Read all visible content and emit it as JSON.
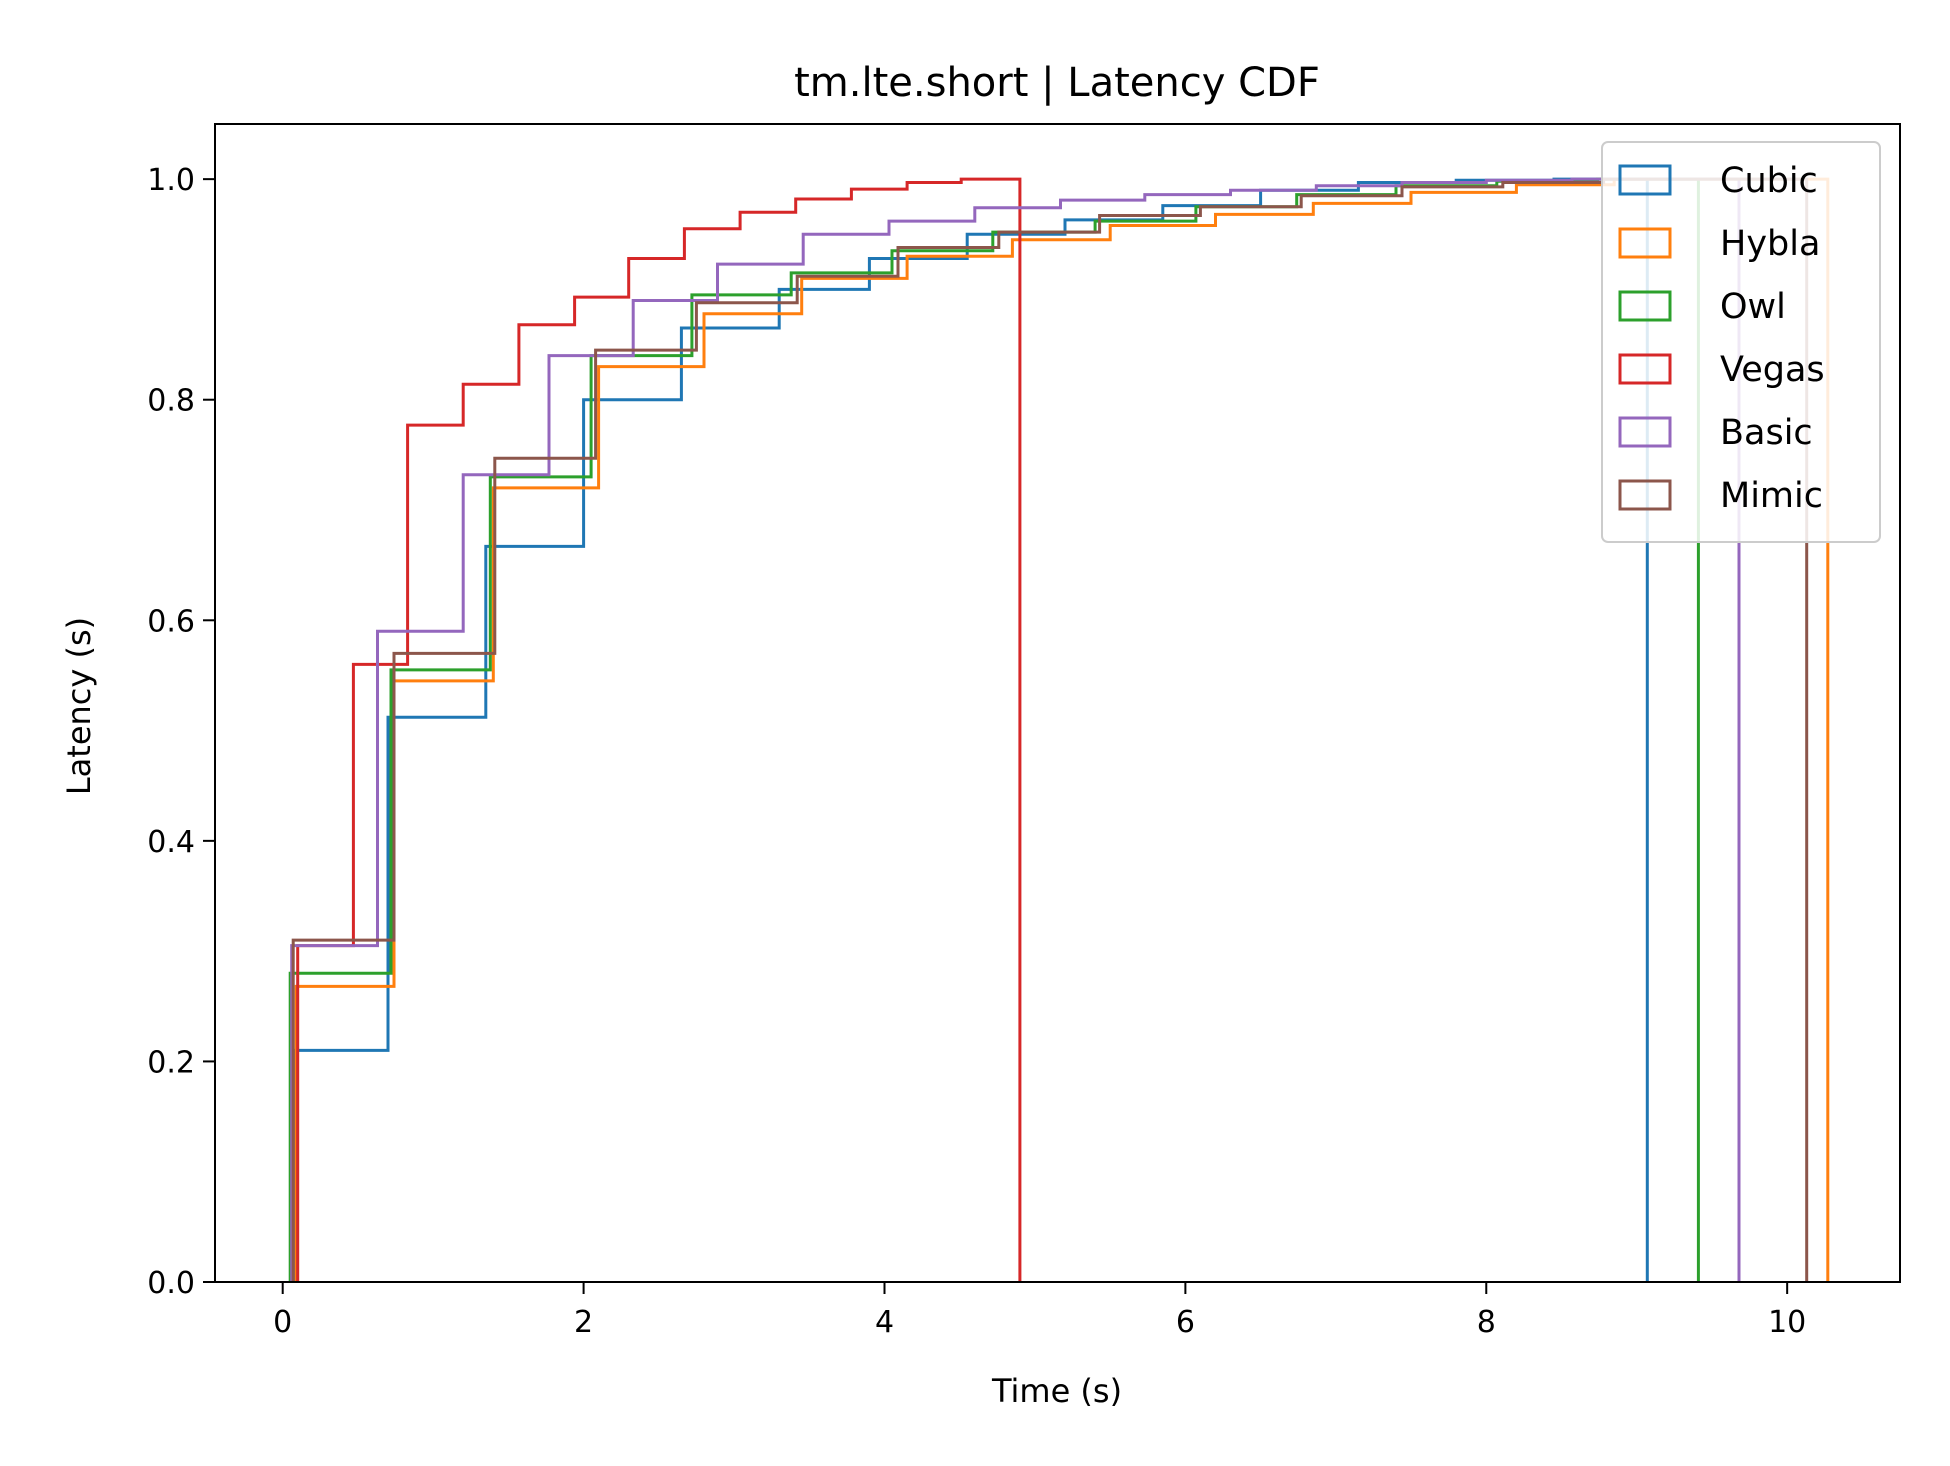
{
  "chart_data": {
    "type": "line",
    "title": "tm.lte.short | Latency CDF",
    "xlabel": "Time (s)",
    "ylabel": "Latency (s)",
    "xlim": [
      -0.45,
      10.75
    ],
    "ylim": [
      0,
      1.05
    ],
    "xticks": [
      0,
      2,
      4,
      6,
      8,
      10
    ],
    "xtick_labels": [
      "0",
      "2",
      "4",
      "6",
      "8",
      "10"
    ],
    "yticks": [
      0,
      0.2,
      0.4,
      0.6,
      0.8,
      1.0
    ],
    "ytick_labels": [
      "0.0",
      "0.2",
      "0.4",
      "0.6",
      "0.8",
      "1.0"
    ],
    "grid": false,
    "legend_position": "top-right",
    "series": [
      {
        "name": "Cubic",
        "color": "#1f77b4",
        "points": [
          [
            0.08,
            0
          ],
          [
            0.08,
            0.21
          ],
          [
            0.7,
            0.21
          ],
          [
            0.7,
            0.512
          ],
          [
            1.35,
            0.512
          ],
          [
            1.35,
            0.667
          ],
          [
            2.0,
            0.667
          ],
          [
            2.0,
            0.8
          ],
          [
            2.65,
            0.8
          ],
          [
            2.65,
            0.865
          ],
          [
            3.3,
            0.865
          ],
          [
            3.3,
            0.9
          ],
          [
            3.9,
            0.9
          ],
          [
            3.9,
            0.928
          ],
          [
            4.55,
            0.928
          ],
          [
            4.55,
            0.95
          ],
          [
            5.2,
            0.95
          ],
          [
            5.2,
            0.963
          ],
          [
            5.85,
            0.963
          ],
          [
            5.85,
            0.976
          ],
          [
            6.5,
            0.976
          ],
          [
            6.5,
            0.99
          ],
          [
            7.15,
            0.99
          ],
          [
            7.15,
            0.997
          ],
          [
            7.8,
            0.997
          ],
          [
            7.8,
            0.999
          ],
          [
            8.45,
            0.999
          ],
          [
            8.45,
            1.0
          ],
          [
            9.07,
            1.0
          ],
          [
            9.07,
            0
          ]
        ]
      },
      {
        "name": "Hybla",
        "color": "#ff7f0e",
        "points": [
          [
            0.09,
            0
          ],
          [
            0.09,
            0.268
          ],
          [
            0.74,
            0.268
          ],
          [
            0.74,
            0.545
          ],
          [
            1.4,
            0.545
          ],
          [
            1.4,
            0.72
          ],
          [
            2.1,
            0.72
          ],
          [
            2.1,
            0.83
          ],
          [
            2.8,
            0.83
          ],
          [
            2.8,
            0.878
          ],
          [
            3.45,
            0.878
          ],
          [
            3.45,
            0.91
          ],
          [
            4.15,
            0.91
          ],
          [
            4.15,
            0.93
          ],
          [
            4.85,
            0.93
          ],
          [
            4.85,
            0.945
          ],
          [
            5.5,
            0.945
          ],
          [
            5.5,
            0.958
          ],
          [
            6.2,
            0.958
          ],
          [
            6.2,
            0.968
          ],
          [
            6.85,
            0.968
          ],
          [
            6.85,
            0.978
          ],
          [
            7.5,
            0.978
          ],
          [
            7.5,
            0.988
          ],
          [
            8.2,
            0.988
          ],
          [
            8.2,
            0.995
          ],
          [
            8.85,
            0.995
          ],
          [
            8.85,
            1.0
          ],
          [
            10.27,
            1.0
          ],
          [
            10.27,
            0
          ]
        ]
      },
      {
        "name": "Owl",
        "color": "#2ca02c",
        "points": [
          [
            0.05,
            0
          ],
          [
            0.05,
            0.28
          ],
          [
            0.72,
            0.28
          ],
          [
            0.72,
            0.555
          ],
          [
            1.38,
            0.555
          ],
          [
            1.38,
            0.73
          ],
          [
            2.05,
            0.73
          ],
          [
            2.05,
            0.84
          ],
          [
            2.72,
            0.84
          ],
          [
            2.72,
            0.895
          ],
          [
            3.38,
            0.895
          ],
          [
            3.38,
            0.915
          ],
          [
            4.05,
            0.915
          ],
          [
            4.05,
            0.935
          ],
          [
            4.72,
            0.935
          ],
          [
            4.72,
            0.952
          ],
          [
            5.4,
            0.952
          ],
          [
            5.4,
            0.962
          ],
          [
            6.07,
            0.962
          ],
          [
            6.07,
            0.975
          ],
          [
            6.74,
            0.975
          ],
          [
            6.74,
            0.986
          ],
          [
            7.4,
            0.986
          ],
          [
            7.4,
            0.994
          ],
          [
            8.07,
            0.994
          ],
          [
            8.07,
            0.998
          ],
          [
            8.74,
            0.998
          ],
          [
            8.74,
            1.0
          ],
          [
            9.41,
            1.0
          ],
          [
            9.41,
            0
          ]
        ]
      },
      {
        "name": "Vegas",
        "color": "#d62728",
        "points": [
          [
            0.1,
            0
          ],
          [
            0.1,
            0.305
          ],
          [
            0.47,
            0.305
          ],
          [
            0.47,
            0.56
          ],
          [
            0.83,
            0.56
          ],
          [
            0.83,
            0.777
          ],
          [
            1.2,
            0.777
          ],
          [
            1.2,
            0.814
          ],
          [
            1.57,
            0.814
          ],
          [
            1.57,
            0.868
          ],
          [
            1.94,
            0.868
          ],
          [
            1.94,
            0.893
          ],
          [
            2.3,
            0.893
          ],
          [
            2.3,
            0.928
          ],
          [
            2.67,
            0.928
          ],
          [
            2.67,
            0.955
          ],
          [
            3.04,
            0.955
          ],
          [
            3.04,
            0.97
          ],
          [
            3.41,
            0.97
          ],
          [
            3.41,
            0.982
          ],
          [
            3.78,
            0.982
          ],
          [
            3.78,
            0.991
          ],
          [
            4.15,
            0.991
          ],
          [
            4.15,
            0.997
          ],
          [
            4.51,
            0.997
          ],
          [
            4.51,
            1.0
          ],
          [
            4.9,
            1.0
          ],
          [
            4.9,
            0
          ]
        ]
      },
      {
        "name": "Basic",
        "color": "#9467bd",
        "points": [
          [
            0.06,
            0
          ],
          [
            0.06,
            0.305
          ],
          [
            0.63,
            0.305
          ],
          [
            0.63,
            0.59
          ],
          [
            1.2,
            0.59
          ],
          [
            1.2,
            0.732
          ],
          [
            1.77,
            0.732
          ],
          [
            1.77,
            0.84
          ],
          [
            2.33,
            0.84
          ],
          [
            2.33,
            0.89
          ],
          [
            2.89,
            0.89
          ],
          [
            2.89,
            0.923
          ],
          [
            3.46,
            0.923
          ],
          [
            3.46,
            0.95
          ],
          [
            4.03,
            0.95
          ],
          [
            4.03,
            0.962
          ],
          [
            4.6,
            0.962
          ],
          [
            4.6,
            0.974
          ],
          [
            5.17,
            0.974
          ],
          [
            5.17,
            0.981
          ],
          [
            5.73,
            0.981
          ],
          [
            5.73,
            0.986
          ],
          [
            6.3,
            0.986
          ],
          [
            6.3,
            0.99
          ],
          [
            6.87,
            0.99
          ],
          [
            6.87,
            0.994
          ],
          [
            7.44,
            0.994
          ],
          [
            7.44,
            0.997
          ],
          [
            8.0,
            0.997
          ],
          [
            8.0,
            0.999
          ],
          [
            8.57,
            0.999
          ],
          [
            8.57,
            1.0
          ],
          [
            9.68,
            1.0
          ],
          [
            9.68,
            0
          ]
        ]
      },
      {
        "name": "Mimic",
        "color": "#8c564b",
        "points": [
          [
            0.07,
            0
          ],
          [
            0.07,
            0.31
          ],
          [
            0.74,
            0.31
          ],
          [
            0.74,
            0.57
          ],
          [
            1.41,
            0.57
          ],
          [
            1.41,
            0.747
          ],
          [
            2.08,
            0.747
          ],
          [
            2.08,
            0.845
          ],
          [
            2.75,
            0.845
          ],
          [
            2.75,
            0.888
          ],
          [
            3.42,
            0.888
          ],
          [
            3.42,
            0.912
          ],
          [
            4.09,
            0.912
          ],
          [
            4.09,
            0.938
          ],
          [
            4.76,
            0.938
          ],
          [
            4.76,
            0.952
          ],
          [
            5.43,
            0.952
          ],
          [
            5.43,
            0.967
          ],
          [
            6.1,
            0.967
          ],
          [
            6.1,
            0.975
          ],
          [
            6.77,
            0.975
          ],
          [
            6.77,
            0.985
          ],
          [
            7.44,
            0.985
          ],
          [
            7.44,
            0.993
          ],
          [
            8.11,
            0.993
          ],
          [
            8.11,
            0.997
          ],
          [
            8.78,
            0.997
          ],
          [
            8.78,
            1.0
          ],
          [
            10.13,
            1.0
          ],
          [
            10.13,
            0
          ]
        ]
      }
    ]
  }
}
